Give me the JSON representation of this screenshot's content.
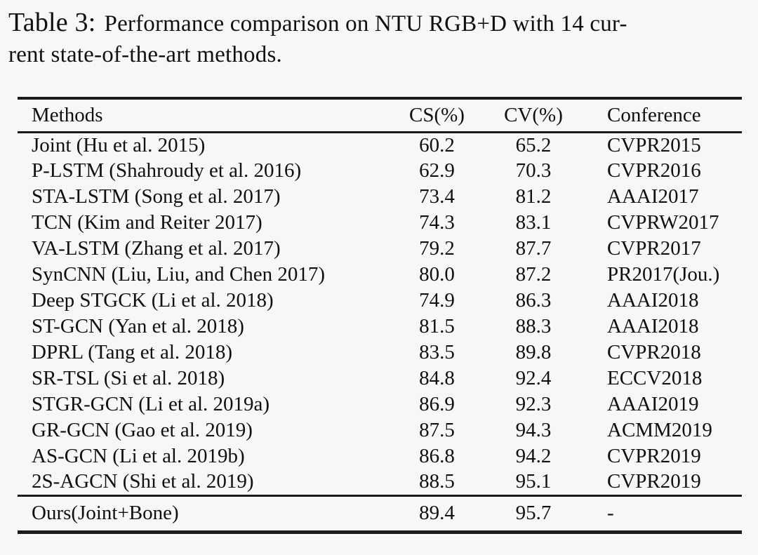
{
  "caption": {
    "label": "Table 3:",
    "line1": "Performance comparison on NTU RGB+D with 14 cur-",
    "line2": "rent state-of-the-art methods."
  },
  "table": {
    "headers": [
      "Methods",
      "CS(%)",
      "CV(%)",
      "Conference"
    ],
    "rows": [
      [
        "Joint (Hu et al. 2015)",
        "60.2",
        "65.2",
        "CVPR2015"
      ],
      [
        "P-LSTM (Shahroudy et al. 2016)",
        "62.9",
        "70.3",
        "CVPR2016"
      ],
      [
        "STA-LSTM (Song et al. 2017)",
        "73.4",
        "81.2",
        "AAAI2017"
      ],
      [
        "TCN (Kim and Reiter 2017)",
        "74.3",
        "83.1",
        "CVPRW2017"
      ],
      [
        "VA-LSTM (Zhang et al. 2017)",
        "79.2",
        "87.7",
        "CVPR2017"
      ],
      [
        "SynCNN (Liu, Liu, and Chen 2017)",
        "80.0",
        "87.2",
        "PR2017(Jou.)"
      ],
      [
        "Deep STGCK (Li et al. 2018)",
        "74.9",
        "86.3",
        "AAAI2018"
      ],
      [
        "ST-GCN (Yan et al. 2018)",
        "81.5",
        "88.3",
        "AAAI2018"
      ],
      [
        "DPRL (Tang et al. 2018)",
        "83.5",
        "89.8",
        "CVPR2018"
      ],
      [
        "SR-TSL (Si et al. 2018)",
        "84.8",
        "92.4",
        "ECCV2018"
      ],
      [
        "STGR-GCN (Li et al. 2019a)",
        "86.9",
        "92.3",
        "AAAI2019"
      ],
      [
        "GR-GCN (Gao et al. 2019)",
        "87.5",
        "94.3",
        "ACMM2019"
      ],
      [
        "AS-GCN (Li et al. 2019b)",
        "86.8",
        "94.2",
        "CVPR2019"
      ],
      [
        "2S-AGCN (Shi et al. 2019)",
        "88.5",
        "95.1",
        "CVPR2019"
      ]
    ],
    "ours": [
      "Ours(Joint+Bone)",
      "89.4",
      "95.7",
      "-"
    ]
  },
  "chart_data": {
    "type": "table",
    "title": "Table 3: Performance comparison on NTU RGB+D with 14 current state-of-the-art methods.",
    "columns": [
      "Methods",
      "CS(%)",
      "CV(%)",
      "Conference"
    ],
    "rows": [
      {
        "method": "Joint (Hu et al. 2015)",
        "cs": 60.2,
        "cv": 65.2,
        "conference": "CVPR2015"
      },
      {
        "method": "P-LSTM (Shahroudy et al. 2016)",
        "cs": 62.9,
        "cv": 70.3,
        "conference": "CVPR2016"
      },
      {
        "method": "STA-LSTM (Song et al. 2017)",
        "cs": 73.4,
        "cv": 81.2,
        "conference": "AAAI2017"
      },
      {
        "method": "TCN (Kim and Reiter 2017)",
        "cs": 74.3,
        "cv": 83.1,
        "conference": "CVPRW2017"
      },
      {
        "method": "VA-LSTM (Zhang et al. 2017)",
        "cs": 79.2,
        "cv": 87.7,
        "conference": "CVPR2017"
      },
      {
        "method": "SynCNN (Liu, Liu, and Chen 2017)",
        "cs": 80.0,
        "cv": 87.2,
        "conference": "PR2017(Jou.)"
      },
      {
        "method": "Deep STGCK (Li et al. 2018)",
        "cs": 74.9,
        "cv": 86.3,
        "conference": "AAAI2018"
      },
      {
        "method": "ST-GCN (Yan et al. 2018)",
        "cs": 81.5,
        "cv": 88.3,
        "conference": "AAAI2018"
      },
      {
        "method": "DPRL (Tang et al. 2018)",
        "cs": 83.5,
        "cv": 89.8,
        "conference": "CVPR2018"
      },
      {
        "method": "SR-TSL (Si et al. 2018)",
        "cs": 84.8,
        "cv": 92.4,
        "conference": "ECCV2018"
      },
      {
        "method": "STGR-GCN (Li et al. 2019a)",
        "cs": 86.9,
        "cv": 92.3,
        "conference": "AAAI2019"
      },
      {
        "method": "GR-GCN (Gao et al. 2019)",
        "cs": 87.5,
        "cv": 94.3,
        "conference": "ACMM2019"
      },
      {
        "method": "AS-GCN (Li et al. 2019b)",
        "cs": 86.8,
        "cv": 94.2,
        "conference": "CVPR2019"
      },
      {
        "method": "2S-AGCN (Shi et al. 2019)",
        "cs": 88.5,
        "cv": 95.1,
        "conference": "CVPR2019"
      },
      {
        "method": "Ours(Joint+Bone)",
        "cs": 89.4,
        "cv": 95.7,
        "conference": "-"
      }
    ]
  },
  "colors": {
    "background": "#f7f7f7",
    "text": "#101010",
    "rule": "#1b1b1b"
  }
}
